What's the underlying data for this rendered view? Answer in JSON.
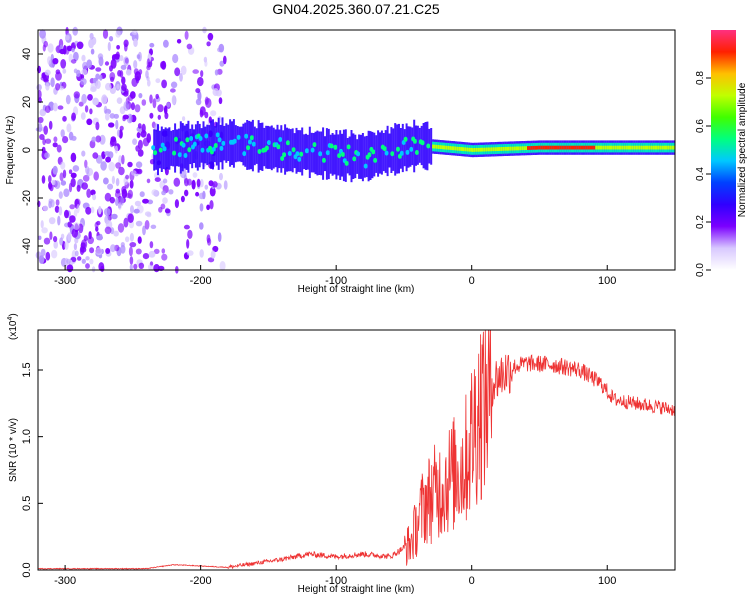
{
  "title": "GN04.2025.360.07.21.C25",
  "chart_data": [
    {
      "type": "heatmap",
      "xlabel": "Height of straight line (km)",
      "ylabel": "Frequency (Hz)",
      "xlim": [
        -320,
        150
      ],
      "ylim": [
        -50,
        50
      ],
      "xticks": [
        -300,
        -200,
        -100,
        0,
        100
      ],
      "yticks": [
        -40,
        -20,
        0,
        20,
        40
      ],
      "colorbar": {
        "label": "Normalized spectral amplitude",
        "range": [
          0.0,
          1.0
        ],
        "ticks": [
          "0.0",
          "0.2",
          "0.4",
          "0.6",
          "0.8"
        ],
        "colormap": [
          "#ffffff",
          "#d8c8ff",
          "#7b00ff",
          "#3000ff",
          "#0040ff",
          "#00c8ff",
          "#00ff80",
          "#40ff00",
          "#c0ff00",
          "#ffc000",
          "#ff2000",
          "#ff3080"
        ]
      },
      "band": {
        "noise_region_x": [
          -320,
          -180
        ],
        "band_x": [
          -235,
          150
        ],
        "center_freq_points": [
          [
            -235,
            0
          ],
          [
            -180,
            3
          ],
          [
            -150,
            1
          ],
          [
            -120,
            -1
          ],
          [
            -100,
            -2
          ],
          [
            -80,
            -3
          ],
          [
            -60,
            0
          ],
          [
            -40,
            2
          ],
          [
            -20,
            1
          ],
          [
            0,
            0
          ],
          [
            50,
            1
          ],
          [
            100,
            1
          ],
          [
            150,
            1
          ]
        ]
      }
    },
    {
      "type": "line",
      "xlabel": "Height of straight line (km)",
      "ylabel": "SNR (10 * v/v)",
      "yscale_label": "(x10",
      "yscale_exp": "4",
      "xlim": [
        -320,
        150
      ],
      "ylim": [
        0,
        1.8
      ],
      "xticks": [
        -300,
        -200,
        -100,
        0,
        100
      ],
      "yticks": [
        "0.0",
        "0.5",
        "1.0",
        "1.5"
      ],
      "line_color": "#ee3333",
      "trend_x": [
        -320,
        -240,
        -220,
        -180,
        -160,
        -140,
        -120,
        -100,
        -80,
        -60,
        -45,
        -35,
        -25,
        -15,
        -5,
        0,
        5,
        10,
        15,
        20,
        30,
        40,
        60,
        80,
        95,
        105,
        120,
        140,
        150
      ],
      "trend_y": [
        0.01,
        0.01,
        0.04,
        0.02,
        0.05,
        0.08,
        0.12,
        0.1,
        0.12,
        0.1,
        0.2,
        0.5,
        0.6,
        0.7,
        0.8,
        1.0,
        1.2,
        1.3,
        1.4,
        1.45,
        1.52,
        1.55,
        1.54,
        1.5,
        1.4,
        1.28,
        1.25,
        1.22,
        1.2
      ]
    }
  ]
}
